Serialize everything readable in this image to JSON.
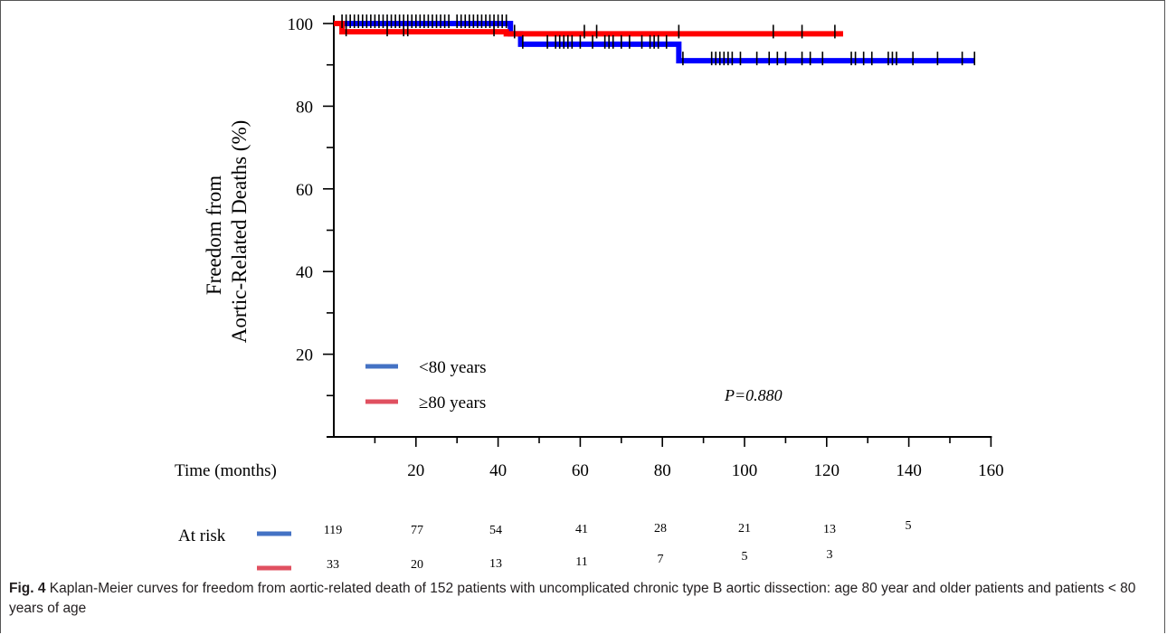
{
  "chart_data": {
    "type": "line",
    "subtype": "kaplan-meier",
    "ylabel_line1": "Freedom from",
    "ylabel_line2": "Aortic-Related Deaths (%)",
    "xlabel": "Time (months)",
    "xlim": [
      0,
      160
    ],
    "ylim": [
      0,
      100
    ],
    "xticks": [
      20,
      40,
      60,
      80,
      100,
      120,
      140,
      160
    ],
    "yticks": [
      20,
      40,
      60,
      80,
      100
    ],
    "series": [
      {
        "name": "<80 years",
        "color": "#0000ff",
        "legend_color": "#4472c4",
        "steps": [
          [
            0,
            100
          ],
          [
            43,
            100
          ],
          [
            43,
            97.5
          ],
          [
            45.5,
            97.5
          ],
          [
            45.5,
            95
          ],
          [
            84,
            95
          ],
          [
            84,
            91
          ],
          [
            156,
            91
          ]
        ],
        "censor_marks": [
          2,
          3,
          4,
          5,
          6,
          7,
          8,
          9,
          10,
          11,
          12,
          13,
          14,
          15,
          16,
          17,
          18,
          19,
          20,
          21,
          22,
          23,
          24,
          25,
          26,
          27,
          28,
          30,
          31,
          32,
          33,
          34,
          35,
          36,
          37,
          38,
          39,
          40,
          41,
          42,
          44,
          46,
          52,
          54,
          55,
          56,
          57,
          58,
          60,
          63,
          66,
          67,
          68,
          70,
          72,
          75,
          77,
          78,
          79,
          81,
          85,
          92,
          93,
          94,
          95,
          96,
          97,
          99,
          103,
          106,
          108,
          110,
          114,
          116,
          119,
          126,
          127,
          129,
          131,
          135,
          136,
          137,
          141,
          147,
          153,
          156
        ]
      },
      {
        "name": "≥80 years",
        "color": "#ff0000",
        "legend_color": "#e05060",
        "steps": [
          [
            0,
            100
          ],
          [
            2,
            100
          ],
          [
            2,
            98
          ],
          [
            42,
            98
          ],
          [
            42,
            97.5
          ],
          [
            124,
            97.5
          ]
        ],
        "censor_marks": [
          3,
          13,
          17,
          18,
          39,
          61,
          64,
          84,
          107,
          114,
          122
        ]
      }
    ],
    "annotation": "P=0.880",
    "at_risk_label": "At risk",
    "at_risk": [
      {
        "series": 0,
        "counts": [
          "119",
          "77",
          "54",
          "41",
          "28",
          "21",
          "13",
          "5"
        ]
      },
      {
        "series": 1,
        "counts": [
          "33",
          "20",
          "13",
          "11",
          "7",
          "5",
          "3"
        ]
      }
    ]
  },
  "caption": {
    "label": "Fig. 4",
    "text": " Kaplan-Meier curves for freedom from aortic-related death of 152 patients with uncomplicated chronic type B aortic dissection: age 80 year and older patients and patients < 80 years of age"
  }
}
